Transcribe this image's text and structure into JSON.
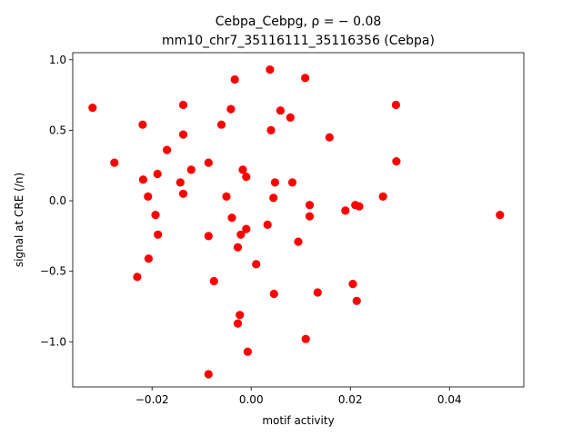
{
  "chart_data": {
    "type": "scatter",
    "title_line1": "Cebpa_Cebpg, ρ = − 0.08",
    "title_line2": "mm10_chr7_35116111_35116356 (Cebpa)",
    "xlabel": "motif activity",
    "ylabel": "signal at CRE (/n)",
    "xlim": [
      -0.036,
      0.055
    ],
    "ylim": [
      -1.32,
      1.05
    ],
    "xticks": [
      -0.02,
      0.0,
      0.02,
      0.04
    ],
    "xtick_labels": [
      "−0.02",
      "0.00",
      "0.02",
      "0.04"
    ],
    "yticks": [
      -1.0,
      -0.5,
      0.0,
      0.5,
      1.0
    ],
    "ytick_labels": [
      "−1.0",
      "−0.5",
      "0.0",
      "0.5",
      "1.0"
    ],
    "grid": false,
    "marker_color": "#ff0000",
    "points": [
      {
        "x": -0.032,
        "y": 0.66
      },
      {
        "x": -0.0276,
        "y": 0.27
      },
      {
        "x": -0.023,
        "y": -0.54
      },
      {
        "x": -0.0219,
        "y": 0.54
      },
      {
        "x": -0.0218,
        "y": 0.15
      },
      {
        "x": -0.0208,
        "y": 0.03
      },
      {
        "x": -0.0207,
        "y": -0.41
      },
      {
        "x": -0.0193,
        "y": -0.1
      },
      {
        "x": -0.0189,
        "y": 0.19
      },
      {
        "x": -0.0188,
        "y": -0.24
      },
      {
        "x": -0.017,
        "y": 0.36
      },
      {
        "x": -0.0143,
        "y": 0.13
      },
      {
        "x": -0.0137,
        "y": 0.68
      },
      {
        "x": -0.0137,
        "y": 0.47
      },
      {
        "x": -0.0137,
        "y": 0.05
      },
      {
        "x": -0.0121,
        "y": 0.22
      },
      {
        "x": -0.0086,
        "y": 0.27
      },
      {
        "x": -0.0086,
        "y": -0.25
      },
      {
        "x": -0.0086,
        "y": -1.23
      },
      {
        "x": -0.0075,
        "y": -0.57
      },
      {
        "x": -0.006,
        "y": 0.54
      },
      {
        "x": -0.005,
        "y": 0.03
      },
      {
        "x": -0.0041,
        "y": 0.65
      },
      {
        "x": -0.0039,
        "y": -0.12
      },
      {
        "x": -0.0033,
        "y": 0.86
      },
      {
        "x": -0.0027,
        "y": -0.33
      },
      {
        "x": -0.0027,
        "y": -0.87
      },
      {
        "x": -0.0023,
        "y": -0.81
      },
      {
        "x": -0.0021,
        "y": -0.24
      },
      {
        "x": -0.0017,
        "y": 0.22
      },
      {
        "x": -0.001,
        "y": 0.17
      },
      {
        "x": -0.001,
        "y": -0.2
      },
      {
        "x": -0.0007,
        "y": -1.07
      },
      {
        "x": 0.001,
        "y": -0.45
      },
      {
        "x": 0.0033,
        "y": -0.17
      },
      {
        "x": 0.0038,
        "y": 0.93
      },
      {
        "x": 0.004,
        "y": 0.5
      },
      {
        "x": 0.0045,
        "y": 0.02
      },
      {
        "x": 0.0046,
        "y": -0.66
      },
      {
        "x": 0.0048,
        "y": 0.13
      },
      {
        "x": 0.0059,
        "y": 0.64
      },
      {
        "x": 0.0079,
        "y": 0.59
      },
      {
        "x": 0.0083,
        "y": 0.13
      },
      {
        "x": 0.0095,
        "y": -0.29
      },
      {
        "x": 0.0109,
        "y": 0.87
      },
      {
        "x": 0.011,
        "y": -0.98
      },
      {
        "x": 0.0118,
        "y": -0.03
      },
      {
        "x": 0.0118,
        "y": -0.11
      },
      {
        "x": 0.0134,
        "y": -0.65
      },
      {
        "x": 0.0158,
        "y": 0.45
      },
      {
        "x": 0.019,
        "y": -0.07
      },
      {
        "x": 0.0205,
        "y": -0.59
      },
      {
        "x": 0.021,
        "y": -0.03
      },
      {
        "x": 0.0213,
        "y": -0.71
      },
      {
        "x": 0.0218,
        "y": -0.04
      },
      {
        "x": 0.0266,
        "y": 0.03
      },
      {
        "x": 0.0292,
        "y": 0.68
      },
      {
        "x": 0.0293,
        "y": 0.28
      },
      {
        "x": 0.0502,
        "y": -0.1
      }
    ]
  }
}
